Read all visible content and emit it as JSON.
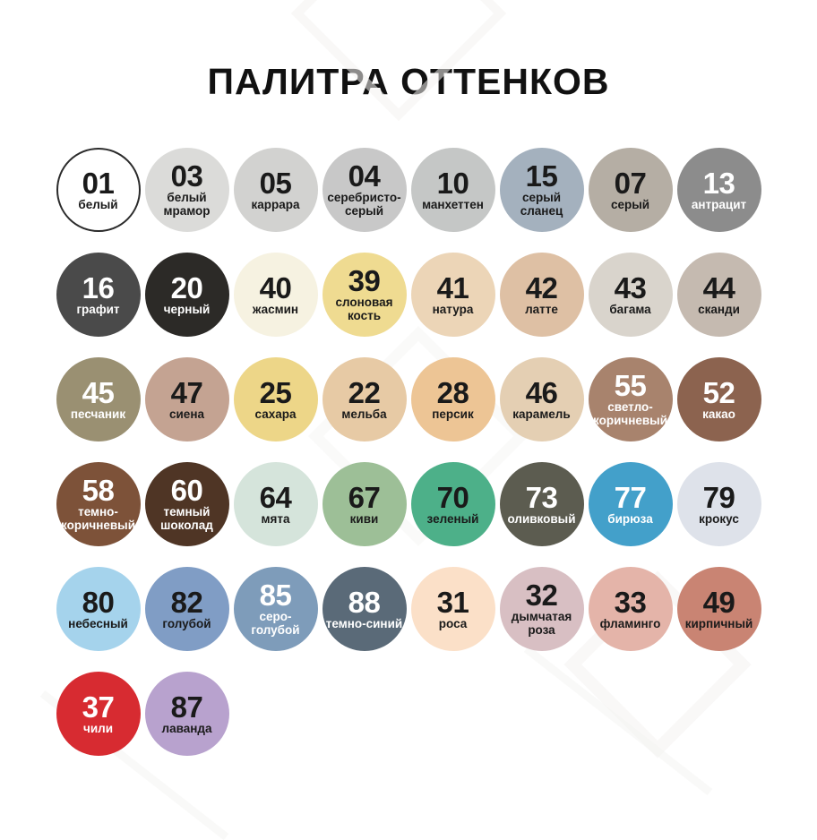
{
  "title": "ПАЛИТРА ОТТЕНКОВ",
  "title_color": "#111111",
  "background": "#ffffff",
  "palette": {
    "columns": 8,
    "swatches": [
      {
        "code": "01",
        "name": "белый",
        "color": "#ffffff",
        "text_color": "#1a1a1a",
        "outlined": true
      },
      {
        "code": "03",
        "name": "белый мрамор",
        "color": "#dbdbd9",
        "text_color": "#1a1a1a",
        "outlined": false
      },
      {
        "code": "05",
        "name": "каррара",
        "color": "#d2d2d0",
        "text_color": "#1a1a1a",
        "outlined": false
      },
      {
        "code": "04",
        "name": "серебристо-серый",
        "color": "#c8c8c8",
        "text_color": "#1a1a1a",
        "outlined": false
      },
      {
        "code": "10",
        "name": "манхеттен",
        "color": "#c5c7c6",
        "text_color": "#1a1a1a",
        "outlined": false
      },
      {
        "code": "15",
        "name": "серый сланец",
        "color": "#a4b1be",
        "text_color": "#1a1a1a",
        "outlined": false
      },
      {
        "code": "07",
        "name": "серый",
        "color": "#b5aea4",
        "text_color": "#1a1a1a",
        "outlined": false
      },
      {
        "code": "13",
        "name": "антрацит",
        "color": "#8c8c8c",
        "text_color": "#ffffff",
        "outlined": false
      },
      {
        "code": "16",
        "name": "графит",
        "color": "#4a4a4a",
        "text_color": "#ffffff",
        "outlined": false
      },
      {
        "code": "20",
        "name": "черный",
        "color": "#2c2a27",
        "text_color": "#ffffff",
        "outlined": false
      },
      {
        "code": "40",
        "name": "жасмин",
        "color": "#f6f2e1",
        "text_color": "#1a1a1a",
        "outlined": false
      },
      {
        "code": "39",
        "name": "слоновая кость",
        "color": "#efdb91",
        "text_color": "#1a1a1a",
        "outlined": false
      },
      {
        "code": "41",
        "name": "натура",
        "color": "#ecd5b7",
        "text_color": "#1a1a1a",
        "outlined": false
      },
      {
        "code": "42",
        "name": "латте",
        "color": "#dec0a4",
        "text_color": "#1a1a1a",
        "outlined": false
      },
      {
        "code": "43",
        "name": "багама",
        "color": "#d9d4cc",
        "text_color": "#1a1a1a",
        "outlined": false
      },
      {
        "code": "44",
        "name": "сканди",
        "color": "#c5bab0",
        "text_color": "#1a1a1a",
        "outlined": false
      },
      {
        "code": "45",
        "name": "песчаник",
        "color": "#9a9072",
        "text_color": "#ffffff",
        "outlined": false
      },
      {
        "code": "47",
        "name": "сиена",
        "color": "#c4a392",
        "text_color": "#1a1a1a",
        "outlined": false
      },
      {
        "code": "25",
        "name": "сахара",
        "color": "#edd688",
        "text_color": "#1a1a1a",
        "outlined": false
      },
      {
        "code": "22",
        "name": "мельба",
        "color": "#e7caa5",
        "text_color": "#1a1a1a",
        "outlined": false
      },
      {
        "code": "28",
        "name": "персик",
        "color": "#edc595",
        "text_color": "#1a1a1a",
        "outlined": false
      },
      {
        "code": "46",
        "name": "карамель",
        "color": "#e4cfb3",
        "text_color": "#1a1a1a",
        "outlined": false
      },
      {
        "code": "55",
        "name": "светло-коричневый",
        "color": "#a8836d",
        "text_color": "#ffffff",
        "outlined": false
      },
      {
        "code": "52",
        "name": "какао",
        "color": "#8c634f",
        "text_color": "#ffffff",
        "outlined": false
      },
      {
        "code": "58",
        "name": "темно-коричневый",
        "color": "#7d5239",
        "text_color": "#ffffff",
        "outlined": false
      },
      {
        "code": "60",
        "name": "темный шоколад",
        "color": "#4f3525",
        "text_color": "#ffffff",
        "outlined": false
      },
      {
        "code": "64",
        "name": "мята",
        "color": "#d5e4db",
        "text_color": "#1a1a1a",
        "outlined": false
      },
      {
        "code": "67",
        "name": "киви",
        "color": "#9dbf97",
        "text_color": "#1a1a1a",
        "outlined": false
      },
      {
        "code": "70",
        "name": "зеленый",
        "color": "#4db089",
        "text_color": "#1a1a1a",
        "outlined": false
      },
      {
        "code": "73",
        "name": "оливковый",
        "color": "#5c5c50",
        "text_color": "#ffffff",
        "outlined": false
      },
      {
        "code": "77",
        "name": "бирюза",
        "color": "#43a0ca",
        "text_color": "#ffffff",
        "outlined": false
      },
      {
        "code": "79",
        "name": "крокус",
        "color": "#dee2ea",
        "text_color": "#1a1a1a",
        "outlined": false
      },
      {
        "code": "80",
        "name": "небесный",
        "color": "#a5d3ec",
        "text_color": "#1a1a1a",
        "outlined": false
      },
      {
        "code": "82",
        "name": "голубой",
        "color": "#809dc5",
        "text_color": "#1a1a1a",
        "outlined": false
      },
      {
        "code": "85",
        "name": "серо-голубой",
        "color": "#7e9cba",
        "text_color": "#ffffff",
        "outlined": false
      },
      {
        "code": "88",
        "name": "темно-синий",
        "color": "#5a6a78",
        "text_color": "#ffffff",
        "outlined": false
      },
      {
        "code": "31",
        "name": "роса",
        "color": "#fbe0c8",
        "text_color": "#1a1a1a",
        "outlined": false
      },
      {
        "code": "32",
        "name": "дымчатая роза",
        "color": "#d8bfc3",
        "text_color": "#1a1a1a",
        "outlined": false
      },
      {
        "code": "33",
        "name": "фламинго",
        "color": "#e4b4a9",
        "text_color": "#1a1a1a",
        "outlined": false
      },
      {
        "code": "49",
        "name": "кирпичный",
        "color": "#c98473",
        "text_color": "#1a1a1a",
        "outlined": false
      },
      {
        "code": "37",
        "name": "чили",
        "color": "#d72b31",
        "text_color": "#ffffff",
        "outlined": false
      },
      {
        "code": "87",
        "name": "лаванда",
        "color": "#b8a2ce",
        "text_color": "#1a1a1a",
        "outlined": false
      }
    ]
  }
}
